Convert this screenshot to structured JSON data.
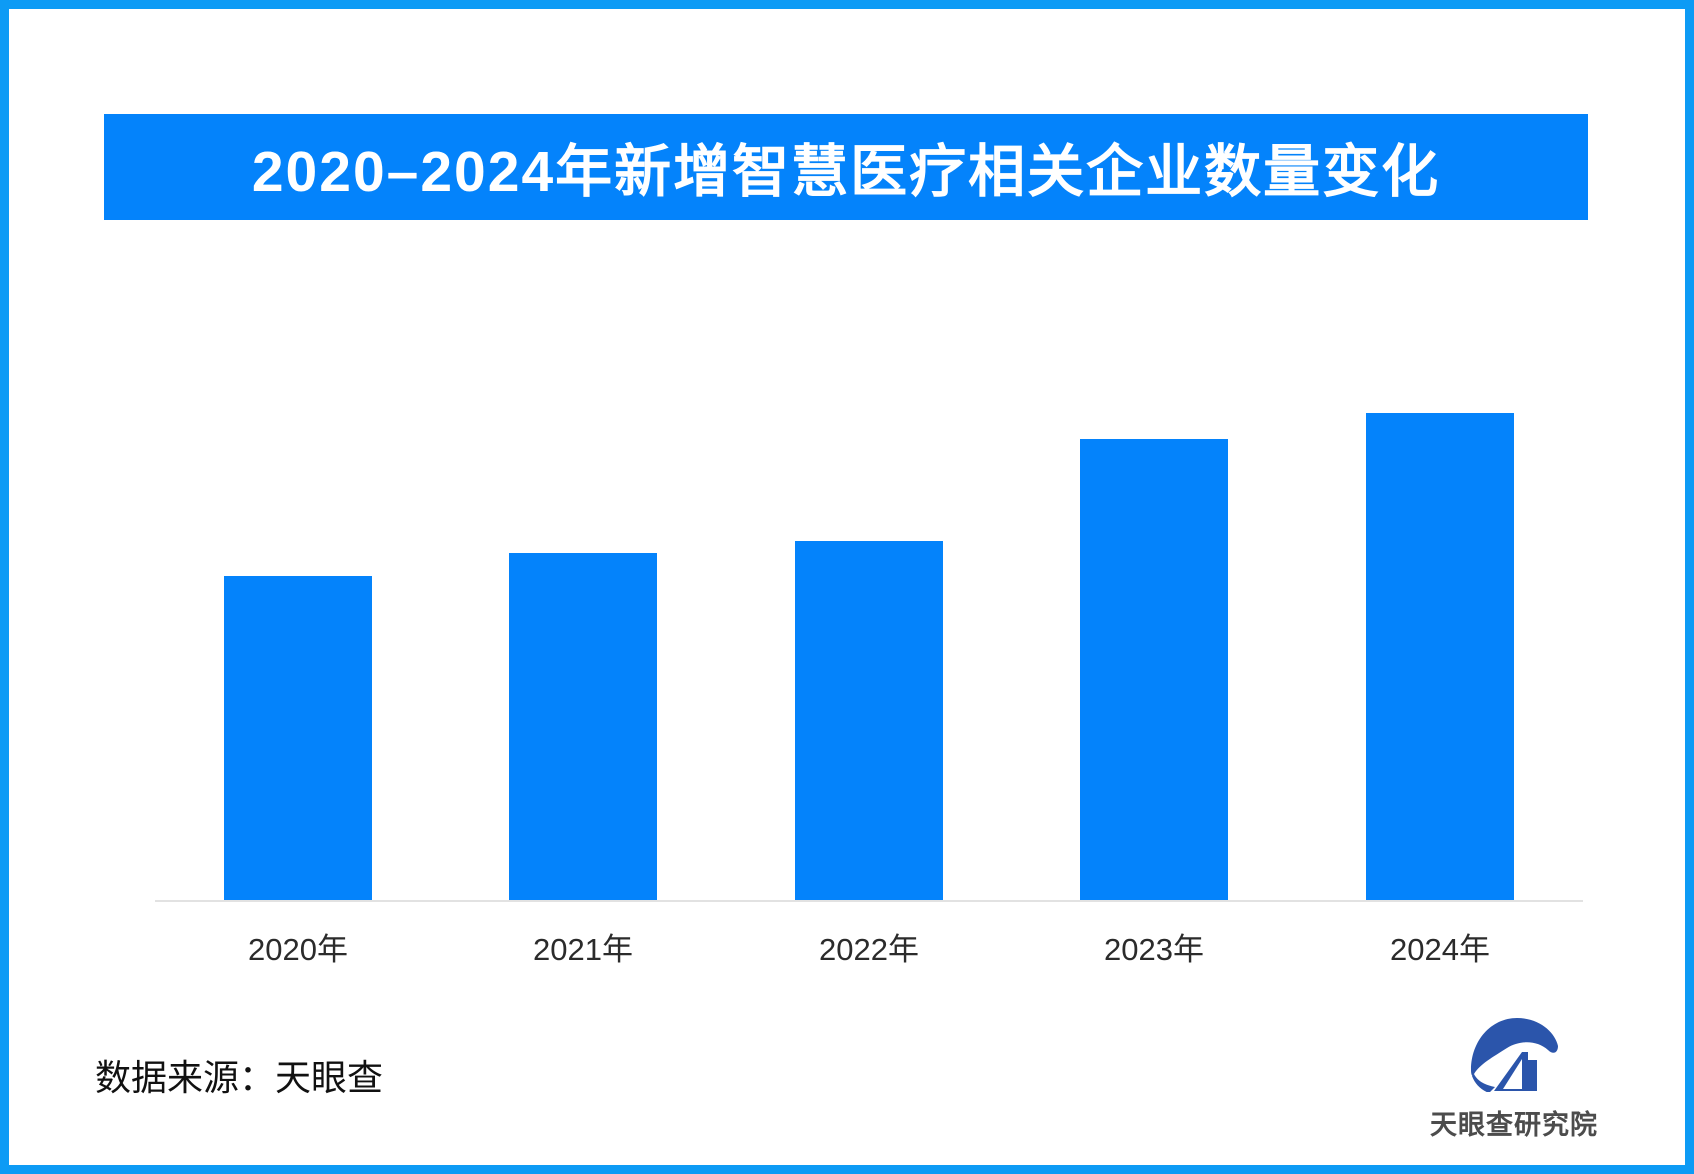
{
  "header": {
    "title": "2020–2024年新增智慧医疗相关企业数量变化"
  },
  "chart_data": {
    "type": "bar",
    "title": "2020–2024年新增智慧医疗相关企业数量变化",
    "categories": [
      "2020年",
      "2021年",
      "2022年",
      "2023年",
      "2024年"
    ],
    "values": [
      324,
      347,
      359,
      461,
      487
    ],
    "xlabel": "",
    "ylabel": "",
    "ylim": [
      0,
      520
    ],
    "grid": "off",
    "legend": "none",
    "value_axis_labels_visible": false,
    "bar_color": "#0483FB"
  },
  "footer": {
    "source_text": "数据来源：天眼查",
    "brand_name": "天眼查研究院"
  },
  "colors": {
    "accent_blue": "#0483FB",
    "banner_blue": "#0483FB",
    "border_blue": "#0D9BF5",
    "axis_gray": "#E2E2E2",
    "label_dark": "#2B2B2B",
    "logo_navy": "#2B55AB",
    "brand_text_gray": "#4C4C4C"
  }
}
